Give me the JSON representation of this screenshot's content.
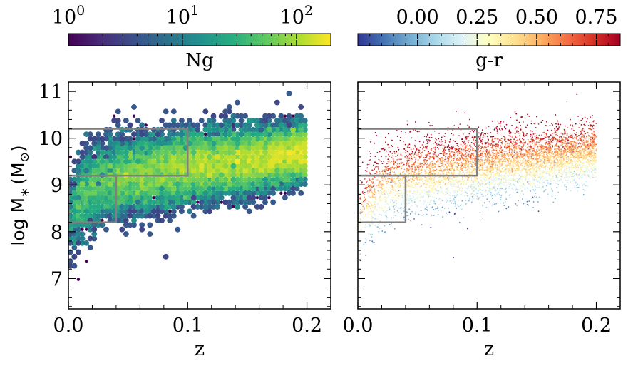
{
  "chart_data": [
    {
      "type": "heatmap",
      "panel": "left",
      "xlabel": "z",
      "ylabel_main": "log M",
      "ylabel_sub": "∗",
      "ylabel_unit": "(M",
      "ylabel_sun": "⊙",
      "ylabel_close": ")",
      "xlim": [
        0.0,
        0.22
      ],
      "ylim": [
        6.35,
        11.2
      ],
      "xticks": [
        0.0,
        0.1,
        0.2
      ],
      "xtick_labels": [
        "0.0",
        "0.1",
        "0.2"
      ],
      "yticks": [
        7,
        8,
        9,
        10,
        11
      ],
      "ytick_labels": [
        "7",
        "8",
        "9",
        "10",
        "11"
      ],
      "colorbar": {
        "label": "Ng",
        "scale": "log",
        "range": [
          1,
          200
        ],
        "ticks": [
          1,
          10,
          100
        ],
        "tick_bases": [
          "10",
          "10",
          "10"
        ],
        "tick_exps": [
          "0",
          "1",
          "2"
        ],
        "colormap": [
          "#440154",
          "#472c7a",
          "#3b518b",
          "#2c718e",
          "#21908d",
          "#27ad81",
          "#5cc863",
          "#aadc32",
          "#fde725"
        ]
      },
      "density_ridge": [
        [
          0.005,
          8.4
        ],
        [
          0.01,
          8.7
        ],
        [
          0.02,
          8.95
        ],
        [
          0.03,
          9.1
        ],
        [
          0.05,
          9.2
        ],
        [
          0.08,
          9.3
        ],
        [
          0.12,
          9.45
        ],
        [
          0.16,
          9.55
        ],
        [
          0.2,
          9.7
        ]
      ],
      "selection_boxes": [
        {
          "x": [
            0.0,
            0.1
          ],
          "y": [
            9.2,
            10.2
          ]
        },
        {
          "x": [
            0.0,
            0.04
          ],
          "y": [
            8.2,
            9.2
          ]
        }
      ],
      "box_color": "#808080"
    },
    {
      "type": "scatter",
      "panel": "right",
      "xlabel": "z",
      "xlim": [
        0.0,
        0.22
      ],
      "ylim": [
        6.35,
        11.2
      ],
      "xticks": [
        0.0,
        0.1,
        0.2
      ],
      "xtick_labels": [
        "0.0",
        "0.1",
        "0.2"
      ],
      "colorbar": {
        "label": "g-r",
        "range": [
          -0.25,
          0.85
        ],
        "ticks": [
          0.0,
          0.25,
          0.5,
          0.75
        ],
        "tick_labels": [
          "0.00",
          "0.25",
          "0.50",
          "0.75"
        ],
        "colormap": [
          "#313695",
          "#4575b4",
          "#74add1",
          "#abd9e9",
          "#e0f3f8",
          "#ffffbf",
          "#fee090",
          "#fdae61",
          "#f46d43",
          "#d73027",
          "#a50026"
        ]
      },
      "color_trend": "red (g-r ≈ 0.7) for high-mass galaxies, blue (g-r ≈ 0) for low-mass galaxies at fixed z",
      "selection_boxes": [
        {
          "x": [
            0.0,
            0.1
          ],
          "y": [
            9.2,
            10.2
          ]
        },
        {
          "x": [
            0.0,
            0.04
          ],
          "y": [
            8.2,
            9.2
          ]
        }
      ],
      "box_color": "#808080"
    }
  ]
}
